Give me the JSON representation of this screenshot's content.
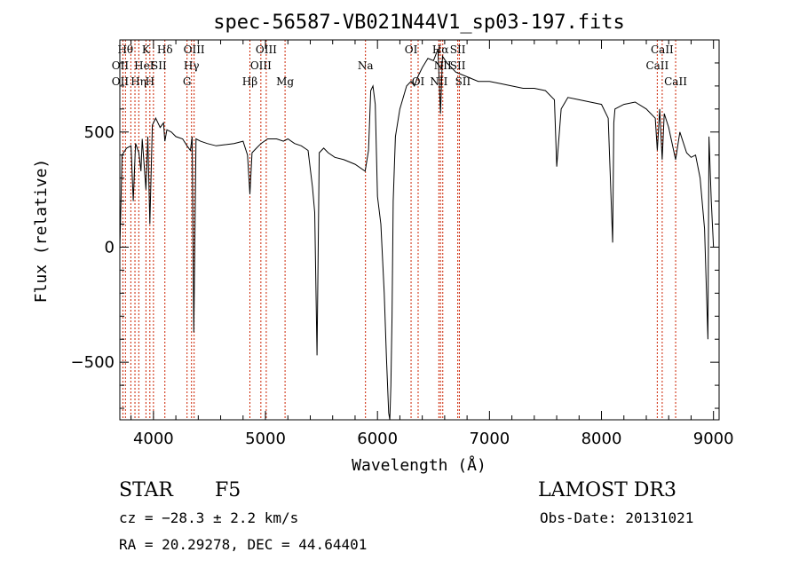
{
  "chart_data": {
    "type": "line",
    "title": "spec-56587-VB021N44V1_sp03-197.fits",
    "xlabel": "Wavelength (Å)",
    "ylabel": "Flux (relative)",
    "xlim": [
      3700,
      9050
    ],
    "ylim": [
      -750,
      900
    ],
    "xticks": [
      4000,
      5000,
      6000,
      7000,
      8000,
      9000
    ],
    "yticks": [
      -500,
      0,
      500
    ],
    "spectrum": {
      "x": [
        3700,
        3720,
        3760,
        3800,
        3820,
        3840,
        3870,
        3889,
        3900,
        3933,
        3950,
        3968,
        3990,
        4020,
        4060,
        4090,
        4102,
        4120,
        4160,
        4200,
        4260,
        4300,
        4330,
        4345,
        4360,
        4380,
        4420,
        4480,
        4560,
        4640,
        4720,
        4800,
        4840,
        4861,
        4880,
        4920,
        4960,
        5020,
        5100,
        5160,
        5200,
        5260,
        5320,
        5380,
        5420,
        5440,
        5460,
        5480,
        5520,
        5560,
        5620,
        5700,
        5800,
        5890,
        5920,
        5940,
        5960,
        5980,
        6000,
        6030,
        6060,
        6080,
        6100,
        6110,
        6120,
        6130,
        6140,
        6160,
        6200,
        6260,
        6300,
        6330,
        6360,
        6400,
        6450,
        6500,
        6540,
        6563,
        6580,
        6620,
        6700,
        6800,
        6900,
        7000,
        7100,
        7200,
        7300,
        7400,
        7500,
        7580,
        7600,
        7640,
        7700,
        7800,
        7900,
        8000,
        8060,
        8100,
        8110,
        8120,
        8160,
        8200,
        8300,
        8400,
        8480,
        8498,
        8520,
        8542,
        8560,
        8600,
        8662,
        8700,
        8760,
        8800,
        8840,
        8880,
        8920,
        8950,
        8960,
        8980,
        9000
      ],
      "y": [
        -10,
        400,
        430,
        440,
        200,
        450,
        410,
        330,
        470,
        250,
        480,
        100,
        530,
        560,
        520,
        540,
        460,
        510,
        500,
        480,
        470,
        440,
        420,
        480,
        -370,
        470,
        460,
        450,
        440,
        445,
        450,
        460,
        400,
        230,
        410,
        430,
        450,
        470,
        470,
        460,
        470,
        450,
        440,
        420,
        260,
        150,
        -470,
        410,
        430,
        410,
        390,
        380,
        360,
        330,
        420,
        680,
        700,
        620,
        220,
        100,
        -200,
        -480,
        -720,
        -760,
        -600,
        -300,
        200,
        480,
        600,
        700,
        720,
        700,
        740,
        780,
        820,
        810,
        860,
        580,
        830,
        800,
        760,
        740,
        720,
        720,
        710,
        700,
        690,
        690,
        680,
        640,
        350,
        600,
        650,
        640,
        630,
        620,
        560,
        20,
        540,
        600,
        610,
        620,
        630,
        600,
        560,
        420,
        600,
        380,
        580,
        520,
        380,
        500,
        410,
        390,
        400,
        300,
        80,
        -400,
        480,
        200,
        0
      ]
    },
    "lines": [
      {
        "wl": 3750,
        "label": "Hθ",
        "row": 1,
        "dx": 0
      },
      {
        "wl": 3727,
        "label": "OII",
        "row": 2,
        "dx": -3
      },
      {
        "wl": 3727,
        "label": "OII",
        "row": 3,
        "dx": -3
      },
      {
        "wl": 3798,
        "label": "",
        "row": 0,
        "dx": 0
      },
      {
        "wl": 3835,
        "label": "Hη",
        "row": 3,
        "dx": 4
      },
      {
        "wl": 3869,
        "label": "HeI",
        "row": 2,
        "dx": 6
      },
      {
        "wl": 3933,
        "label": "K",
        "row": 1,
        "dx": 0
      },
      {
        "wl": 3968,
        "label": "H",
        "row": 3,
        "dx": 0
      },
      {
        "wl": 4000,
        "label": "SII",
        "row": 2,
        "dx": 6
      },
      {
        "wl": 4102,
        "label": "Hδ",
        "row": 1,
        "dx": 0
      },
      {
        "wl": 4300,
        "label": "G",
        "row": 3,
        "dx": 0
      },
      {
        "wl": 4340,
        "label": "Hγ",
        "row": 2,
        "dx": 0
      },
      {
        "wl": 4363,
        "label": "OIII",
        "row": 1,
        "dx": 0
      },
      {
        "wl": 4861,
        "label": "Hβ",
        "row": 3,
        "dx": 0
      },
      {
        "wl": 4959,
        "label": "OIII",
        "row": 2,
        "dx": 0
      },
      {
        "wl": 5007,
        "label": "OIII",
        "row": 1,
        "dx": 0
      },
      {
        "wl": 5175,
        "label": "Mg",
        "row": 3,
        "dx": 0
      },
      {
        "wl": 5893,
        "label": "Na",
        "row": 2,
        "dx": 0
      },
      {
        "wl": 6300,
        "label": "OI",
        "row": 1,
        "dx": 0
      },
      {
        "wl": 6363,
        "label": "OI",
        "row": 3,
        "dx": 0
      },
      {
        "wl": 6548,
        "label": "NII",
        "row": 3,
        "dx": 0
      },
      {
        "wl": 6563,
        "label": "Hα",
        "row": 1,
        "dx": 0
      },
      {
        "wl": 6583,
        "label": "NII",
        "row": 2,
        "dx": 0
      },
      {
        "wl": 6717,
        "label": "SII",
        "row": 1,
        "dx": 0
      },
      {
        "wl": 6717,
        "label": "SII",
        "row": 2,
        "dx": 0
      },
      {
        "wl": 6731,
        "label": "SII",
        "row": 3,
        "dx": 4
      },
      {
        "wl": 8498,
        "label": "CaII",
        "row": 2,
        "dx": 0
      },
      {
        "wl": 8542,
        "label": "CaII",
        "row": 1,
        "dx": 0
      },
      {
        "wl": 8662,
        "label": "CaII",
        "row": 3,
        "dx": 0
      }
    ]
  },
  "info": {
    "class_label": "STAR",
    "subclass": "F5",
    "cz": "cz = −28.3 ± 2.2 km/s",
    "coords": "RA =  20.29278, DEC =  44.64401",
    "survey": "LAMOST DR3",
    "obs_date": "Obs-Date: 20131021"
  },
  "colors": {
    "spectrum": "#000000",
    "line_marker": "#cc2200",
    "axes": "#000000"
  }
}
